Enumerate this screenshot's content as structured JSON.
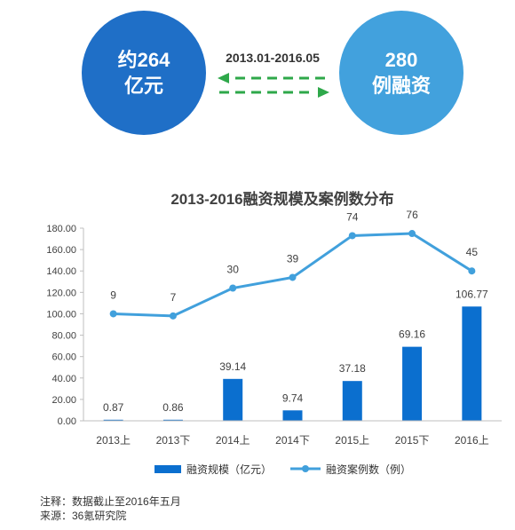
{
  "summary": {
    "left_circle": {
      "line1": "约264",
      "line2": "亿元",
      "color": "#1f6fc7"
    },
    "right_circle": {
      "line1": "280",
      "line2": "例融资",
      "color": "#42a1dd"
    },
    "period": "2013.01-2016.05",
    "arrow_color": "#2ea84a"
  },
  "chart_data": {
    "type": "bar",
    "title": "2013-2016融资规模及案例数分布",
    "categories": [
      "2013上",
      "2013下",
      "2014上",
      "2014下",
      "2015上",
      "2015下",
      "2016上"
    ],
    "series": [
      {
        "name": "融资规模（亿元）",
        "type": "bar",
        "values": [
          0.87,
          0.86,
          39.14,
          9.74,
          37.18,
          69.16,
          106.77
        ],
        "labels": [
          "0.87",
          "0.86",
          "39.14",
          "9.74",
          "37.18",
          "69.16",
          "106.77"
        ],
        "color": "#0b6fcf"
      },
      {
        "name": "融资案例数（例）",
        "type": "line",
        "values": [
          9,
          7,
          30,
          39,
          74,
          76,
          45
        ],
        "plot_values": [
          100,
          98,
          124,
          134,
          173,
          175,
          140
        ],
        "labels": [
          "9",
          "7",
          "30",
          "39",
          "74",
          "76",
          "45"
        ],
        "color": "#41a0dc"
      }
    ],
    "yticks": [
      "0.00",
      "20.00",
      "40.00",
      "60.00",
      "80.00",
      "100.00",
      "120.00",
      "140.00",
      "160.00",
      "180.00"
    ],
    "ylim": [
      0,
      180
    ],
    "grid": false,
    "legend_position": "bottom"
  },
  "footnotes": {
    "note": "注释：数据截止至2016年五月",
    "source": "来源：36氪研究院"
  }
}
